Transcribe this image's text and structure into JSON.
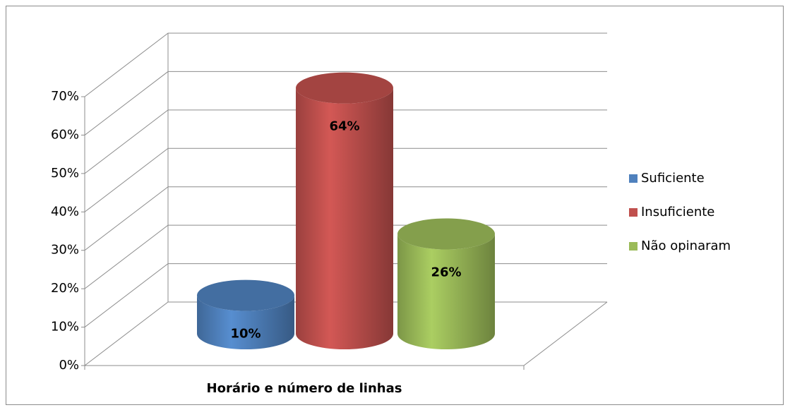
{
  "chart_data": {
    "type": "bar",
    "categories": [
      "Horário e número de linhas"
    ],
    "series": [
      {
        "name": "Suficiente",
        "color": "#4f81bd",
        "values": [
          10
        ],
        "value_labels": [
          "10%"
        ]
      },
      {
        "name": "Insuficiente",
        "color": "#c0504d",
        "values": [
          64
        ],
        "value_labels": [
          "64%"
        ]
      },
      {
        "name": "Não opinaram",
        "color": "#9bbb59",
        "values": [
          26
        ],
        "value_labels": [
          "26%"
        ]
      }
    ],
    "ylim": [
      0,
      70
    ],
    "yticks": [
      {
        "value": 0,
        "label": "0%"
      },
      {
        "value": 10,
        "label": "10%"
      },
      {
        "value": 20,
        "label": "20%"
      },
      {
        "value": 30,
        "label": "30%"
      },
      {
        "value": 40,
        "label": "40%"
      },
      {
        "value": 50,
        "label": "50%"
      },
      {
        "value": 60,
        "label": "60%"
      },
      {
        "value": 70,
        "label": "70%"
      }
    ],
    "grid": true,
    "legend": "right"
  }
}
